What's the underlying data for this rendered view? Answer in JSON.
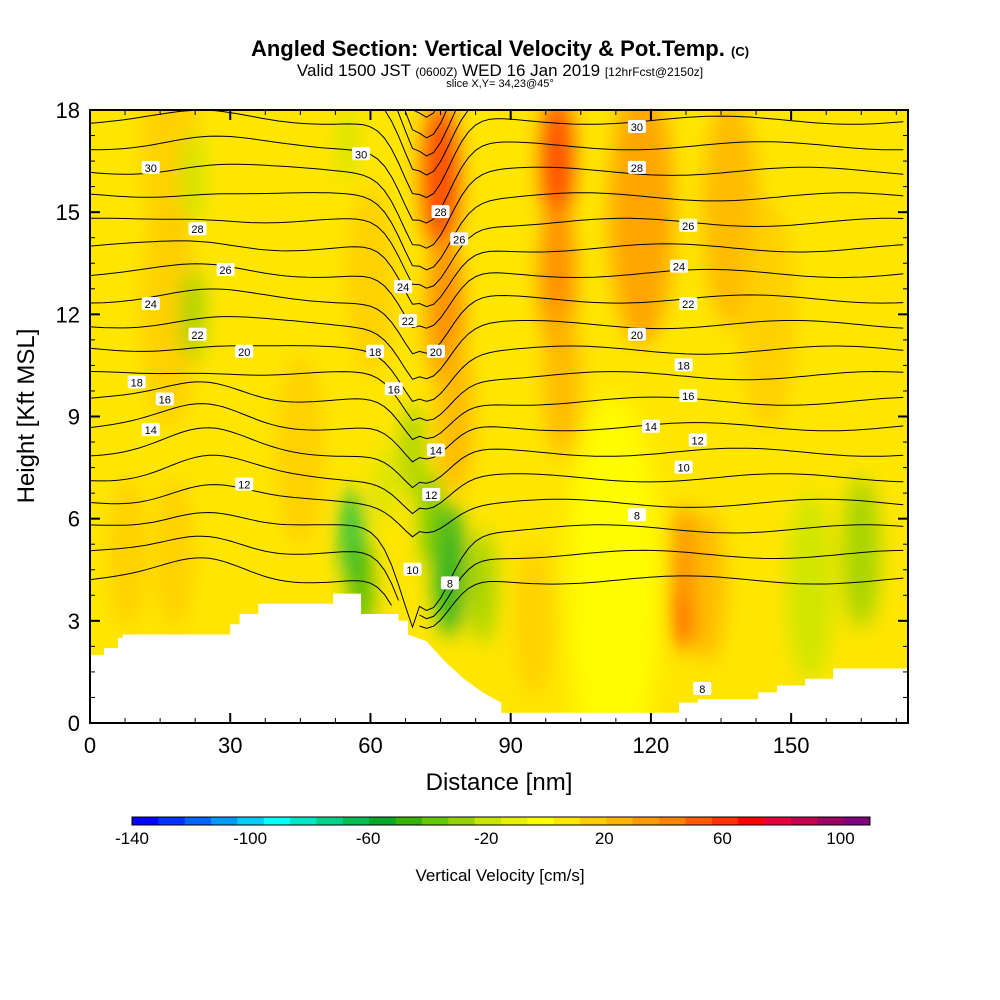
{
  "header": {
    "title_main": "Angled Section: Vertical Velocity & Pot.Temp.",
    "title_unit": "(C)",
    "valid_pre": "Valid 1500 JST",
    "valid_utc": "(0600Z)",
    "valid_day": "WED 16 Jan 2019",
    "valid_fcst": "[12hrFcst@2150z]",
    "slice": "slice X,Y= 34,23@45°"
  },
  "chart_data": {
    "type": "contour",
    "xlabel": "Distance [nm]",
    "ylabel": "Height [Kft MSL]",
    "xlim": [
      0,
      175
    ],
    "ylim": [
      0,
      18
    ],
    "x_ticks": [
      "0",
      "30",
      "60",
      "90",
      "120",
      "150"
    ],
    "y_ticks": [
      "0",
      "3",
      "6",
      "9",
      "12",
      "15",
      "18"
    ],
    "colorbar": {
      "title": "Vertical Velocity [cm/s]",
      "tick_labels": [
        "-140",
        "-100",
        "-60",
        "-20",
        "20",
        "60",
        "100"
      ],
      "tick_values": [
        -140,
        -100,
        -60,
        -20,
        20,
        60,
        100
      ],
      "min": -140,
      "max": 110,
      "step": 10,
      "colors": [
        "#0000ff",
        "#0033ff",
        "#0066ff",
        "#0099ff",
        "#00ccff",
        "#00ffff",
        "#00e6c8",
        "#00d28c",
        "#00be50",
        "#00aa28",
        "#32b400",
        "#64c800",
        "#96d200",
        "#c8e600",
        "#e6f000",
        "#ffff00",
        "#ffe600",
        "#ffcc00",
        "#ffb400",
        "#ff9b00",
        "#ff8200",
        "#ff5a00",
        "#ff3200",
        "#ff0000",
        "#e6003c",
        "#c80050",
        "#a00064",
        "#800080"
      ]
    },
    "terrain_profile": {
      "x": [
        0,
        3,
        3,
        6,
        6,
        7,
        7,
        30,
        30,
        32,
        32,
        36,
        36,
        52,
        52,
        58,
        58,
        66,
        66,
        68,
        68,
        72,
        76,
        80,
        84,
        88,
        88,
        126,
        126,
        130,
        130,
        143,
        143,
        147,
        147,
        153,
        153,
        159,
        159,
        170,
        170,
        175
      ],
      "y": [
        2.0,
        2.0,
        2.2,
        2.2,
        2.5,
        2.5,
        2.6,
        2.6,
        2.9,
        2.9,
        3.2,
        3.2,
        3.5,
        3.5,
        3.8,
        3.8,
        3.2,
        3.2,
        3.0,
        3.0,
        2.6,
        2.4,
        1.8,
        1.3,
        0.9,
        0.6,
        0.3,
        0.3,
        0.6,
        0.6,
        0.7,
        0.7,
        0.9,
        0.9,
        1.1,
        1.1,
        1.3,
        1.3,
        1.6,
        1.6,
        1.6,
        1.6
      ]
    },
    "theta_contours": [
      {
        "value": 8,
        "labels": [
          {
            "text": "8",
            "x": 77,
            "y": 4.1
          },
          {
            "text": "8",
            "x": 117,
            "y": 6.1
          },
          {
            "text": "8",
            "x": 131,
            "y": 1.0
          }
        ]
      },
      {
        "value": 10,
        "labels": [
          {
            "text": "10",
            "x": 69,
            "y": 4.5
          },
          {
            "text": "10",
            "x": 127,
            "y": 7.5
          }
        ]
      },
      {
        "value": 12,
        "labels": [
          {
            "text": "12",
            "x": 33,
            "y": 7.0
          },
          {
            "text": "12",
            "x": 73,
            "y": 6.7
          },
          {
            "text": "12",
            "x": 130,
            "y": 8.3
          }
        ]
      },
      {
        "value": 14,
        "labels": [
          {
            "text": "14",
            "x": 13,
            "y": 8.6
          },
          {
            "text": "14",
            "x": 74,
            "y": 8.0
          },
          {
            "text": "14",
            "x": 120,
            "y": 8.7
          }
        ]
      },
      {
        "value": 16,
        "labels": [
          {
            "text": "16",
            "x": 16,
            "y": 9.5
          },
          {
            "text": "16",
            "x": 65,
            "y": 9.8
          },
          {
            "text": "16",
            "x": 128,
            "y": 9.6
          }
        ]
      },
      {
        "value": 18,
        "labels": [
          {
            "text": "18",
            "x": 10,
            "y": 10.0
          },
          {
            "text": "18",
            "x": 61,
            "y": 10.9
          },
          {
            "text": "18",
            "x": 127,
            "y": 10.5
          }
        ]
      },
      {
        "value": 20,
        "labels": [
          {
            "text": "20",
            "x": 33,
            "y": 10.9
          },
          {
            "text": "20",
            "x": 74,
            "y": 10.9
          },
          {
            "text": "20",
            "x": 117,
            "y": 11.4
          }
        ]
      },
      {
        "value": 22,
        "labels": [
          {
            "text": "22",
            "x": 23,
            "y": 11.4
          },
          {
            "text": "22",
            "x": 68,
            "y": 11.8
          },
          {
            "text": "22",
            "x": 128,
            "y": 12.3
          }
        ]
      },
      {
        "value": 24,
        "labels": [
          {
            "text": "24",
            "x": 13,
            "y": 12.3
          },
          {
            "text": "24",
            "x": 67,
            "y": 12.8
          },
          {
            "text": "24",
            "x": 126,
            "y": 13.4
          }
        ]
      },
      {
        "value": 26,
        "labels": [
          {
            "text": "26",
            "x": 29,
            "y": 13.3
          },
          {
            "text": "26",
            "x": 79,
            "y": 14.2
          },
          {
            "text": "26",
            "x": 128,
            "y": 14.6
          }
        ]
      },
      {
        "value": 28,
        "labels": [
          {
            "text": "28",
            "x": 23,
            "y": 14.5
          },
          {
            "text": "28",
            "x": 75,
            "y": 15.0
          },
          {
            "text": "28",
            "x": 117,
            "y": 16.3
          }
        ]
      },
      {
        "value": 30,
        "labels": [
          {
            "text": "30",
            "x": 13,
            "y": 16.3
          },
          {
            "text": "30",
            "x": 58,
            "y": 16.7
          },
          {
            "text": "30",
            "x": 117,
            "y": 17.5
          }
        ]
      }
    ]
  }
}
